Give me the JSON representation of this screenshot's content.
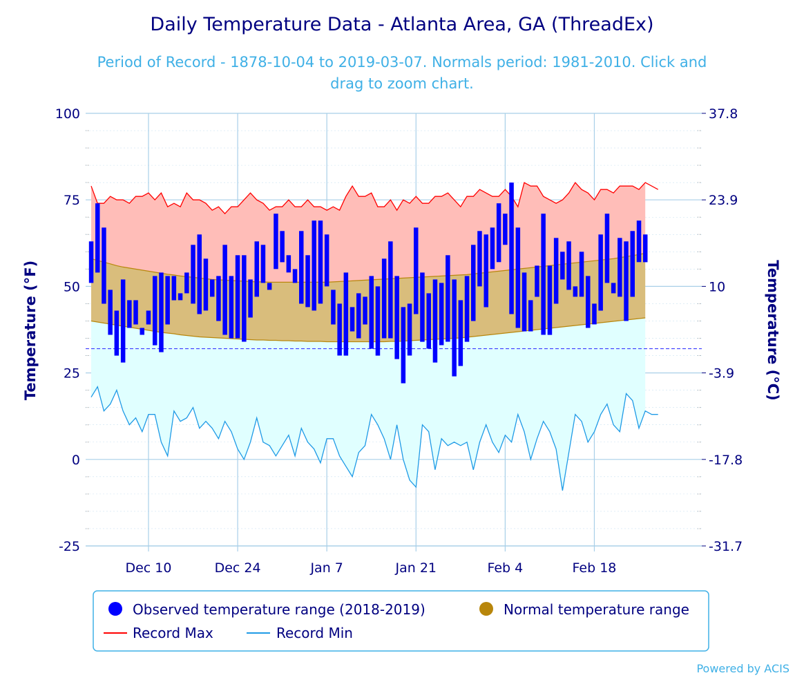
{
  "chart_data": {
    "type": "bar",
    "title": "Daily Temperature Data - Atlanta Area, GA (ThreadEx)",
    "subtitle_line1": "Period of Record - 1878-10-04 to 2019-03-07. Normals period: 1981-2010. Click and",
    "subtitle_line2": "drag to zoom chart.",
    "ylabel_left": "Temperature (°F)",
    "ylabel_right": "Temperature (°C)",
    "ylim": [
      -25,
      100
    ],
    "y_ticks_f": [
      "100",
      "75",
      "50",
      "25",
      "0",
      "-25"
    ],
    "y_ticks_c": [
      "37.8",
      "23.9",
      "10",
      "-3.9",
      "-17.8",
      "-31.7"
    ],
    "x_start": "2018-12-01",
    "x_end": "2019-03-06",
    "x_tick_dates": [
      "2018-12-10",
      "2018-12-24",
      "2019-01-07",
      "2019-01-21",
      "2019-02-04",
      "2019-02-18"
    ],
    "x_tick_labels": [
      "Dec 10",
      "Dec 24",
      "Jan 7",
      "Jan 21",
      "Feb 4",
      "Feb 18"
    ],
    "freezing_line_f": 32,
    "grid": true,
    "legend_position": "bottom",
    "legend": [
      {
        "label": "Observed temperature range (2018-2019)",
        "marker": "circle",
        "color": "#0000ff"
      },
      {
        "label": "Normal temperature range",
        "marker": "circle",
        "color": "#b8860b"
      },
      {
        "label": "Record Max",
        "marker": "line",
        "color": "#ff0000"
      },
      {
        "label": "Record Min",
        "marker": "line",
        "color": "#1e9ae6"
      }
    ],
    "credits": "Powered by ACIS",
    "colors": {
      "observed": "#0000ff",
      "normal_fill": "#d9bd7c",
      "normal_edge": "#b8860b",
      "record_max": "#ff0000",
      "record_max_fill": "#ffbdb8",
      "record_min": "#1e9ae6",
      "record_min_fill": "#e0ffff",
      "freezing_line": "#3a3aff",
      "grid": "#a8cfe8",
      "axis_text": "#000080"
    },
    "series": [
      {
        "name": "Observed High",
        "values": [
          63,
          74,
          67,
          49,
          43,
          52,
          46,
          46,
          38,
          43,
          53,
          54,
          53,
          53,
          48,
          54,
          62,
          65,
          58,
          52,
          53,
          62,
          53,
          59,
          59,
          52,
          63,
          62,
          51,
          71,
          66,
          59,
          55,
          66,
          59,
          69,
          69,
          65,
          49,
          45,
          54,
          44,
          48,
          47,
          53,
          50,
          58,
          63,
          53,
          44,
          45,
          67,
          54,
          48,
          52,
          51,
          59,
          52,
          46,
          53,
          62,
          66,
          65,
          67,
          74,
          71,
          80,
          67,
          54,
          46,
          56,
          71,
          56,
          64,
          60,
          63,
          50,
          60,
          53,
          45,
          65,
          71,
          51,
          64,
          63,
          66,
          69,
          65
        ],
        "low": [
          51,
          54,
          45,
          36,
          30,
          28,
          38,
          39,
          36,
          39,
          33,
          31,
          39,
          46,
          46,
          48,
          45,
          42,
          43,
          47,
          40,
          36,
          35,
          35,
          34,
          41,
          47,
          51,
          49,
          55,
          57,
          54,
          51,
          45,
          44,
          43,
          45,
          50,
          39,
          30,
          30,
          37,
          35,
          39,
          32,
          30,
          35,
          35,
          29,
          22,
          30,
          42,
          34,
          32,
          28,
          33,
          34,
          24,
          27,
          34,
          40,
          50,
          44,
          55,
          57,
          62,
          42,
          38,
          37,
          37,
          47,
          36,
          36,
          45,
          52,
          49,
          47,
          47,
          38,
          39,
          43,
          51,
          48,
          47,
          40,
          47,
          57,
          57
        ]
      },
      {
        "name": "Normal High",
        "values": [
          58,
          57.5,
          57,
          56.5,
          56,
          55.6,
          55.3,
          55,
          54.7,
          54.4,
          54.1,
          53.8,
          53.5,
          53.3,
          53,
          52.8,
          52.6,
          52.4,
          52.2,
          52,
          51.9,
          51.8,
          51.7,
          51.6,
          51.5,
          51.4,
          51.3,
          51.3,
          51.2,
          51.2,
          51.2,
          51.2,
          51.2,
          51.2,
          51.2,
          51.2,
          51.2,
          51.2,
          51.3,
          51.4,
          51.5,
          51.6,
          51.7,
          51.8,
          51.9,
          52,
          52.1,
          52.2,
          52.3,
          52.4,
          52.5,
          52.6,
          52.7,
          52.8,
          52.9,
          53,
          53.1,
          53.2,
          53.3,
          53.4,
          53.6,
          53.8,
          54,
          54.2,
          54.4,
          54.6,
          54.8,
          55,
          55.2,
          55.4,
          55.6,
          55.8,
          56,
          56.2,
          56.4,
          56.6,
          56.8,
          57,
          57.2,
          57.4,
          57.6,
          57.8,
          58,
          58.3,
          58.6,
          58.9,
          59.2,
          59.6
        ]
      },
      {
        "name": "Normal Low",
        "values": [
          40,
          39.7,
          39.4,
          39.1,
          38.8,
          38.5,
          38.2,
          37.9,
          37.6,
          37.3,
          37,
          36.7,
          36.5,
          36.3,
          36,
          35.8,
          35.6,
          35.4,
          35.3,
          35.2,
          35.1,
          35,
          34.9,
          34.8,
          34.7,
          34.6,
          34.5,
          34.5,
          34.4,
          34.4,
          34.3,
          34.3,
          34.2,
          34.2,
          34.1,
          34.1,
          34.1,
          34,
          34,
          34,
          34,
          34,
          34,
          34,
          34,
          34,
          34,
          34.1,
          34.1,
          34.2,
          34.3,
          34.4,
          34.5,
          34.6,
          34.7,
          34.8,
          34.9,
          35,
          35.1,
          35.3,
          35.5,
          35.7,
          35.9,
          36.1,
          36.3,
          36.5,
          36.7,
          36.9,
          37.1,
          37.3,
          37.5,
          37.7,
          37.9,
          38.1,
          38.3,
          38.5,
          38.7,
          38.9,
          39.1,
          39.3,
          39.5,
          39.7,
          39.9,
          40.1,
          40.3,
          40.5,
          40.7,
          40.9
        ]
      },
      {
        "name": "Record Max",
        "values": [
          79,
          74,
          74,
          76,
          75,
          75,
          74,
          76,
          76,
          77,
          75,
          77,
          73,
          74,
          73,
          77,
          75,
          75,
          74,
          72,
          73,
          71,
          73,
          73,
          75,
          77,
          75,
          74,
          72,
          73,
          73,
          75,
          73,
          73,
          75,
          73,
          73,
          72,
          73,
          72,
          76,
          79,
          76,
          76,
          77,
          73,
          73,
          75,
          72,
          75,
          74,
          76,
          74,
          74,
          76,
          76,
          77,
          75,
          73,
          76,
          76,
          78,
          77,
          76,
          76,
          78,
          76,
          73,
          80,
          79,
          79,
          76,
          75,
          74,
          75,
          77,
          80,
          78,
          77,
          75,
          78,
          78,
          77,
          79,
          79,
          79,
          78,
          80,
          79,
          78
        ]
      },
      {
        "name": "Record Min",
        "values": [
          18,
          21,
          14,
          16,
          20,
          14,
          10,
          12,
          8,
          13,
          13,
          5,
          1,
          14,
          11,
          12,
          15,
          9,
          11,
          9,
          6,
          11,
          8,
          3,
          0,
          5,
          12,
          5,
          4,
          1,
          4,
          7,
          1,
          9,
          5,
          3,
          -1,
          6,
          6,
          1,
          -2,
          -5,
          2,
          4,
          13,
          10,
          6,
          0,
          10,
          0,
          -6,
          -8,
          10,
          8,
          -3,
          6,
          4,
          5,
          4,
          5,
          -3,
          5,
          10,
          5,
          2,
          7,
          5,
          13,
          8,
          0,
          6,
          11,
          8,
          3,
          -9,
          2,
          13,
          11,
          5,
          8,
          13,
          16,
          10,
          8,
          19,
          17,
          9,
          14,
          13,
          13
        ]
      }
    ]
  }
}
